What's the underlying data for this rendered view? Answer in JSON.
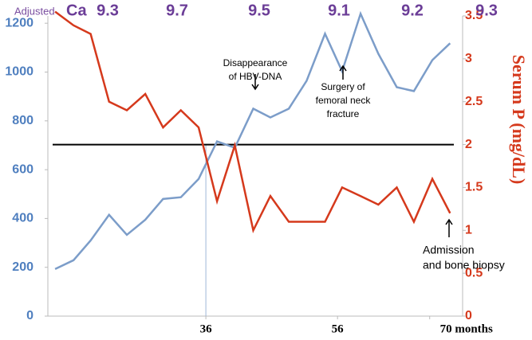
{
  "chart_data": {
    "type": "line",
    "x": [
      13.1,
      15.9,
      18.5,
      21.3,
      24,
      26.8,
      29.5,
      32.2,
      34.9,
      37.7,
      40.4,
      43.2,
      45.8,
      48.6,
      51.3,
      54.1,
      56.7,
      59.5,
      62.2,
      65,
      67.6,
      70.4,
      73.1
    ],
    "series": [
      {
        "color": "#7c9dc9",
        "values": [
          193,
          229,
          310,
          415,
          333,
          395,
          480,
          487,
          562,
          716,
          690,
          850,
          814,
          850,
          964,
          1157,
          1003,
          1239,
          1075,
          938,
          922,
          1049,
          1118
        ]
      },
      {
        "color": "#d5391c",
        "axis": "y2",
        "values": [
          3.55,
          3.39,
          3.29,
          2.5,
          2.4,
          2.59,
          2.2,
          2.4,
          2.2,
          1.34,
          1.99,
          1.0,
          1.4,
          1.1,
          1.1,
          1.1,
          1.5,
          1.4,
          1.3,
          1.5,
          1.1,
          1.6,
          1.2
        ]
      }
    ],
    "xlim": [
      12,
      75
    ],
    "xticks": [
      36,
      56,
      {
        "value": 70,
        "label": "70 months"
      }
    ],
    "ylim": [
      0,
      1230
    ],
    "yticks": [
      0,
      200,
      400,
      600,
      800,
      1000,
      1200
    ],
    "y2lim": [
      0,
      3.5
    ],
    "y2ticks": [
      0,
      0.5,
      1,
      1.5,
      2,
      2.5,
      3,
      3.5
    ],
    "y2label": "Serum P (mg/dL)",
    "reference_line": {
      "value": 2,
      "axis": "y2"
    },
    "vline": 36,
    "ca_prefix": "Adjusted",
    "ca_label": "Ca",
    "ca_values": [
      9.3,
      9.7,
      9.5,
      9.1,
      9.2,
      9.3
    ],
    "annotations": [
      {
        "lines": [
          "Disappearance",
          "of HBV-DNA"
        ]
      },
      {
        "lines": [
          "Surgery of",
          "femoral neck",
          "fracture"
        ]
      },
      {
        "lines": [
          "Admission",
          "and bone biopsy"
        ]
      }
    ]
  }
}
